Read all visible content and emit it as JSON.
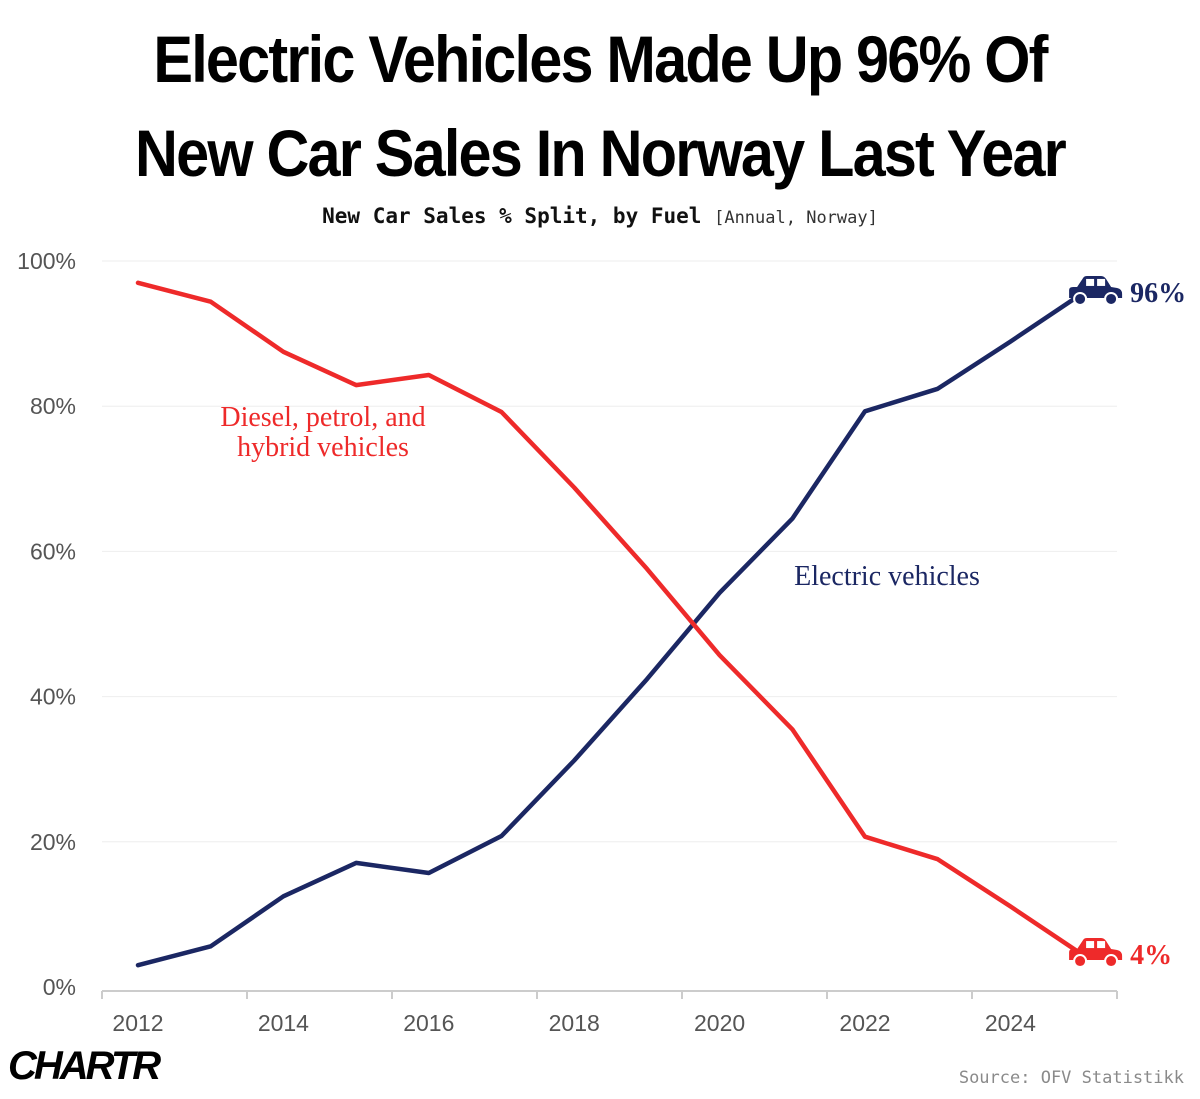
{
  "header": {
    "title_line1": "Electric Vehicles Made Up 96% Of",
    "title_line2": "New Car Sales In Norway Last Year",
    "subtitle_main": "New Car Sales % Split, by Fuel",
    "subtitle_note": "[Annual, Norway]"
  },
  "footer": {
    "brand": "CHARTR",
    "source": "Source: OFV Statistikk"
  },
  "colors": {
    "electric": "#1b2763",
    "fossil": "#ee2a2a",
    "grid": "#eeeeee",
    "axis": "#cccccc",
    "tick_text": "#555555"
  },
  "chart_data": {
    "type": "line",
    "title": "New Car Sales % Split, by Fuel",
    "subtitle": "[Annual, Norway]",
    "xlabel": "",
    "ylabel": "",
    "x": [
      2012,
      2013,
      2014,
      2015,
      2016,
      2017,
      2018,
      2019,
      2020,
      2021,
      2022,
      2023,
      2024
    ],
    "xlim": [
      2011.75,
      2025.75
    ],
    "ylim": [
      0,
      100
    ],
    "x_ticks": [
      2012,
      2014,
      2016,
      2018,
      2020,
      2022,
      2024
    ],
    "x_tick_labels": [
      "2012",
      "2014",
      "2016",
      "2018",
      "2020",
      "2022",
      "2024"
    ],
    "y_ticks": [
      0,
      20,
      40,
      60,
      80,
      100
    ],
    "y_tick_labels": [
      "0%",
      "20%",
      "40%",
      "60%",
      "80%",
      "100%"
    ],
    "grid": "horizontal",
    "series": [
      {
        "name": "Electric vehicles",
        "color": "#1b2763",
        "values": [
          3,
          5.6,
          12.5,
          17.1,
          15.7,
          20.8,
          31.2,
          42.4,
          54.3,
          64.5,
          79.3,
          82.4,
          88.9
        ],
        "end_x": 2025,
        "end_value": 95.6,
        "end_label": "96%",
        "end_icon": "car-icon"
      },
      {
        "name": "Diesel, petrol, and hybrid vehicles",
        "color": "#ee2a2a",
        "values": [
          97,
          94.4,
          87.5,
          82.9,
          84.3,
          79.2,
          68.8,
          57.6,
          45.7,
          35.5,
          20.7,
          17.6,
          11.1
        ],
        "end_x": 2025,
        "end_value": 4.4,
        "end_label": "4%",
        "end_icon": "car-icon"
      }
    ],
    "annotations": [
      {
        "text_line1": "Diesel, petrol, and",
        "text_line2": "hybrid vehicles",
        "series": "Diesel, petrol, and hybrid vehicles"
      },
      {
        "text_line1": "Electric vehicles",
        "text_line2": "",
        "series": "Electric vehicles"
      }
    ]
  }
}
